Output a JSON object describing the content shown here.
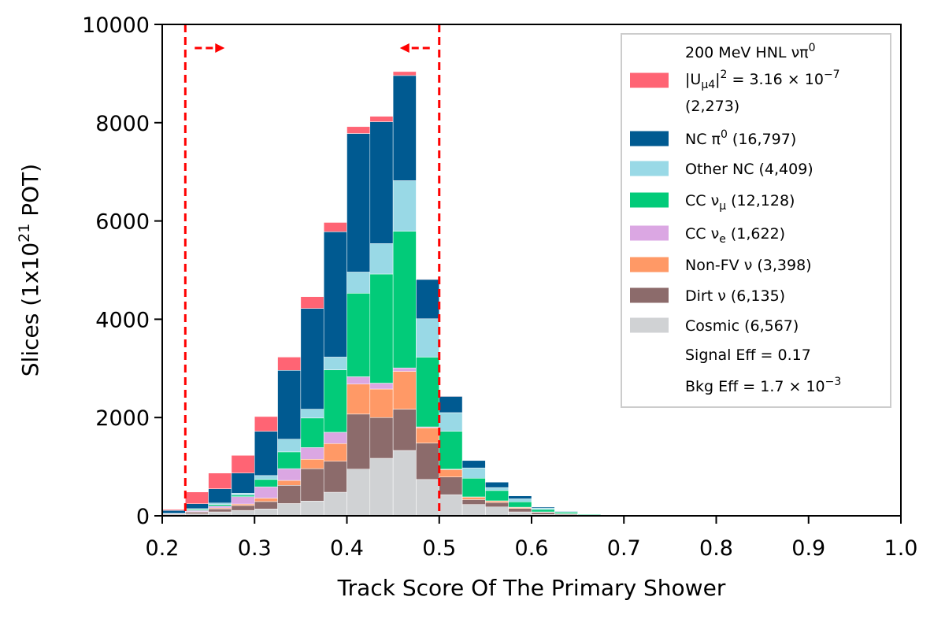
{
  "chart_data": {
    "type": "bar",
    "stacked": true,
    "xlabel": "Track Score Of The Primary Shower",
    "ylabel_parts": [
      "Slices (1x10",
      "21",
      " POT)"
    ],
    "xlim": [
      0.2,
      1.0
    ],
    "ylim": [
      0,
      10000
    ],
    "x_ticks": [
      0.2,
      0.3,
      0.4,
      0.5,
      0.6,
      0.7,
      0.8,
      0.9,
      1.0
    ],
    "x_tick_labels": [
      "0.2",
      "0.3",
      "0.4",
      "0.5",
      "0.6",
      "0.7",
      "0.8",
      "0.9",
      "1.0"
    ],
    "y_ticks": [
      0,
      2000,
      4000,
      6000,
      8000,
      10000
    ],
    "y_tick_labels": [
      "0",
      "2000",
      "4000",
      "6000",
      "8000",
      "10000"
    ],
    "bin_edges": [
      0.2,
      0.225,
      0.25,
      0.275,
      0.3,
      0.325,
      0.35,
      0.375,
      0.4,
      0.425,
      0.45,
      0.475,
      0.5,
      0.525,
      0.55,
      0.575,
      0.6,
      0.625,
      0.65,
      0.675,
      0.7,
      0.725,
      0.75
    ],
    "series": [
      {
        "key": "cosmic",
        "color": "#d0d2d4",
        "values": [
          20,
          40,
          80,
          110,
          140,
          250,
          300,
          480,
          950,
          1170,
          1330,
          740,
          430,
          230,
          180,
          80,
          30,
          20,
          10,
          5,
          0,
          0
        ]
      },
      {
        "key": "dirt",
        "color": "#8c6b6b",
        "values": [
          15,
          35,
          60,
          100,
          150,
          370,
          660,
          630,
          1120,
          830,
          840,
          740,
          360,
          100,
          90,
          70,
          40,
          20,
          10,
          5,
          0,
          0
        ]
      },
      {
        "key": "nonfv",
        "color": "#ff9966",
        "values": [
          5,
          10,
          20,
          30,
          70,
          100,
          190,
          360,
          610,
          580,
          770,
          310,
          150,
          50,
          30,
          20,
          10,
          5,
          0,
          0,
          0,
          0
        ]
      },
      {
        "key": "cce",
        "color": "#dba7e3",
        "values": [
          5,
          25,
          40,
          150,
          230,
          240,
          240,
          230,
          150,
          120,
          70,
          20,
          10,
          5,
          5,
          5,
          0,
          0,
          0,
          0,
          0,
          0
        ]
      },
      {
        "key": "ccmu",
        "color": "#02cb79",
        "values": [
          0,
          20,
          30,
          30,
          150,
          340,
          600,
          1270,
          1700,
          2220,
          2780,
          1420,
          770,
          380,
          210,
          110,
          50,
          30,
          15,
          5,
          5,
          0
        ]
      },
      {
        "key": "othernc",
        "color": "#99d9e6",
        "values": [
          5,
          15,
          30,
          40,
          80,
          260,
          180,
          260,
          430,
          620,
          1030,
          780,
          380,
          210,
          60,
          60,
          30,
          15,
          5,
          5,
          0,
          0
        ]
      },
      {
        "key": "ncpi0",
        "color": "#005a91",
        "values": [
          60,
          100,
          290,
          410,
          900,
          1400,
          2050,
          2550,
          2820,
          2480,
          2140,
          800,
          330,
          150,
          110,
          60,
          20,
          10,
          5,
          0,
          0,
          0
        ]
      },
      {
        "key": "hnl",
        "color": "#ff6474",
        "values": [
          20,
          240,
          320,
          360,
          300,
          270,
          240,
          190,
          140,
          110,
          80,
          10,
          10,
          0,
          0,
          0,
          0,
          0,
          0,
          0,
          0,
          0
        ]
      }
    ],
    "cut_lines": [
      0.225,
      0.5
    ],
    "cut_color": "#ff0000",
    "legend_placement": "top-right",
    "legend": [
      {
        "key": "hnl",
        "color": "#ff6474",
        "lines": [
          [
            "200 MeV HNL ",
            "νπ",
            "0",
            ""
          ],
          [
            "|U",
            "μ4",
            "|",
            "2",
            " = 3.16 × 10",
            "−7",
            ""
          ],
          [
            " (2,273)"
          ]
        ]
      },
      {
        "key": "ncpi0",
        "color": "#005a91",
        "text": "NC π",
        "sup": "0",
        "after": " (16,797)"
      },
      {
        "key": "othernc",
        "color": "#99d9e6",
        "text": "Other NC (4,409)"
      },
      {
        "key": "ccmu",
        "color": "#02cb79",
        "text": "CC ν",
        "sub": "μ",
        "after": " (12,128)"
      },
      {
        "key": "cce",
        "color": "#dba7e3",
        "text": "CC ν",
        "sub": "e",
        "after": " (1,622)"
      },
      {
        "key": "nonfv",
        "color": "#ff9966",
        "text": "Non-FV ν (3,398)"
      },
      {
        "key": "dirt",
        "color": "#8c6b6b",
        "text": "Dirt ν (6,135)"
      },
      {
        "key": "cosmic",
        "color": "#d0d2d4",
        "text": "Cosmic (6,567)"
      },
      {
        "key": "sig",
        "color": null,
        "text": "Signal Eff = 0.17"
      },
      {
        "key": "bkg",
        "color": null,
        "text": "Bkg Eff = 1.7 × 10",
        "sup": "−3"
      }
    ]
  }
}
